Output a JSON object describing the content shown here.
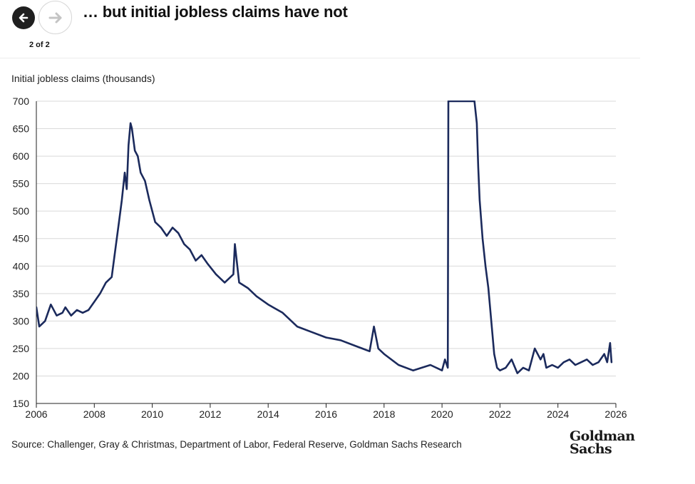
{
  "header": {
    "title": "… but initial jobless claims have not",
    "pager": "2 of 2",
    "prev_icon": "arrow-left-icon",
    "next_icon": "arrow-right-icon"
  },
  "footer": {
    "source": "Source: Challenger, Gray & Christmas, Department of Labor, Federal Reserve, Goldman Sachs Research",
    "logo_line1": "Goldman",
    "logo_line2": "Sachs"
  },
  "colors": {
    "line": "#1b2a5c",
    "grid": "#d9d9d9",
    "axis": "#222222"
  },
  "chart_data": {
    "type": "line",
    "title": "… but initial jobless claims have not",
    "xlabel": "",
    "ylabel": "Initial jobless claims (thousands)",
    "xlim": [
      2006,
      2026
    ],
    "ylim": [
      150,
      700
    ],
    "xticks": [
      2006,
      2008,
      2010,
      2012,
      2014,
      2016,
      2018,
      2020,
      2022,
      2024,
      2026
    ],
    "yticks": [
      150,
      200,
      250,
      300,
      350,
      400,
      450,
      500,
      550,
      600,
      650,
      700
    ],
    "grid": true,
    "clipped_above": 700,
    "series": [
      {
        "name": "Initial jobless claims",
        "x": [
          2006.0,
          2006.1,
          2006.3,
          2006.5,
          2006.7,
          2006.9,
          2007.0,
          2007.2,
          2007.4,
          2007.6,
          2007.8,
          2008.0,
          2008.2,
          2008.4,
          2008.6,
          2008.75,
          2008.85,
          2008.95,
          2009.05,
          2009.12,
          2009.18,
          2009.25,
          2009.3,
          2009.4,
          2009.5,
          2009.6,
          2009.75,
          2009.9,
          2010.1,
          2010.3,
          2010.5,
          2010.7,
          2010.9,
          2011.1,
          2011.3,
          2011.5,
          2011.7,
          2011.9,
          2012.2,
          2012.5,
          2012.8,
          2012.85,
          2013.0,
          2013.3,
          2013.6,
          2014.0,
          2014.5,
          2015.0,
          2015.5,
          2016.0,
          2016.5,
          2017.0,
          2017.5,
          2017.65,
          2017.8,
          2018.0,
          2018.5,
          2019.0,
          2019.3,
          2019.6,
          2020.0,
          2020.1,
          2020.2,
          2020.22,
          2021.12,
          2021.2,
          2021.25,
          2021.3,
          2021.4,
          2021.5,
          2021.6,
          2021.7,
          2021.8,
          2021.9,
          2022.0,
          2022.2,
          2022.4,
          2022.6,
          2022.8,
          2023.0,
          2023.2,
          2023.4,
          2023.5,
          2023.6,
          2023.8,
          2024.0,
          2024.2,
          2024.4,
          2024.6,
          2024.8,
          2025.0,
          2025.2,
          2025.4,
          2025.6,
          2025.7,
          2025.8,
          2025.85
        ],
        "values": [
          325,
          290,
          300,
          330,
          310,
          315,
          325,
          310,
          320,
          315,
          320,
          335,
          350,
          370,
          380,
          440,
          480,
          520,
          570,
          540,
          620,
          660,
          650,
          610,
          600,
          570,
          555,
          520,
          480,
          470,
          455,
          470,
          460,
          440,
          430,
          410,
          420,
          405,
          385,
          370,
          385,
          440,
          370,
          360,
          345,
          330,
          315,
          290,
          280,
          270,
          265,
          255,
          245,
          290,
          250,
          240,
          220,
          210,
          215,
          220,
          210,
          230,
          215,
          700,
          700,
          660,
          580,
          520,
          450,
          400,
          360,
          300,
          240,
          215,
          210,
          215,
          230,
          205,
          215,
          210,
          250,
          230,
          240,
          215,
          220,
          215,
          225,
          230,
          220,
          225,
          230,
          220,
          225,
          240,
          225,
          260,
          225
        ]
      }
    ]
  }
}
